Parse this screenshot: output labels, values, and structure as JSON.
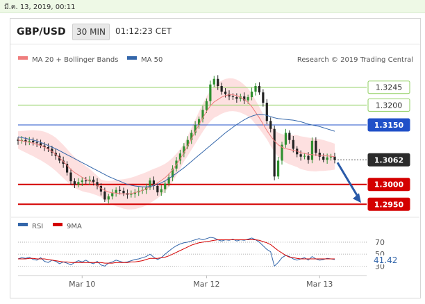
{
  "timestamp": "มี.ค. 13, 2019, 00:11",
  "header": {
    "pair": "GBP/USD",
    "timeframe": "30 MIN",
    "clock": "01:12:23 CET"
  },
  "legend": {
    "ma20_bb": "MA 20 + Bollinger Bands",
    "ma50": "MA 50",
    "credit": "Research © 2019 Trading Central"
  },
  "rsi_legend": {
    "rsi": "RSI",
    "ma9": "9MA"
  },
  "colors": {
    "bullish": "#2f8f2f",
    "bearish": "#222222",
    "ma20": "#ef7d7d",
    "bollinger_fill": "#fde0e0",
    "ma50": "#3366aa",
    "support": "#d40000",
    "pivot": "#2050c8",
    "resistance_line": "#8fcf5f",
    "arrow": "#2a5aa8"
  },
  "chart_data": [
    {
      "type": "candlestick",
      "x_ticks": [
        "Mar 10",
        "Mar 12",
        "Mar 13"
      ],
      "y_ticks": [
        "1.3245",
        "1.3200",
        "1.3150",
        "1.3062",
        "1.3000",
        "1.2950"
      ],
      "levels": [
        {
          "label": "1.3245",
          "value": 1.3245,
          "kind": "resistance"
        },
        {
          "label": "1.3200",
          "value": 1.32,
          "kind": "resistance"
        },
        {
          "label": "1.3150",
          "value": 1.315,
          "kind": "pivot"
        },
        {
          "label": "1.3062",
          "value": 1.3062,
          "kind": "last"
        },
        {
          "label": "1.3000",
          "value": 1.3,
          "kind": "support"
        },
        {
          "label": "1.2950",
          "value": 1.295,
          "kind": "support"
        }
      ],
      "ylim": [
        1.294,
        1.329
      ],
      "close": [
        1.311,
        1.3112,
        1.3108,
        1.311,
        1.3106,
        1.3104,
        1.3098,
        1.3094,
        1.309,
        1.308,
        1.3072,
        1.306,
        1.3052,
        1.303,
        1.3008,
        1.3,
        1.3006,
        1.301,
        1.3008,
        1.3012,
        1.3006,
        1.2996,
        1.2982,
        1.2962,
        1.297,
        1.2978,
        1.2986,
        1.2984,
        1.2978,
        1.2974,
        1.2976,
        1.298,
        1.2984,
        1.2986,
        1.2992,
        1.301,
        1.2996,
        1.298,
        1.2988,
        1.3002,
        1.3018,
        1.304,
        1.306,
        1.3078,
        1.3096,
        1.3112,
        1.313,
        1.315,
        1.3165,
        1.3188,
        1.321,
        1.3252,
        1.3266,
        1.3248,
        1.3234,
        1.3228,
        1.3222,
        1.322,
        1.3216,
        1.3222,
        1.3212,
        1.322,
        1.3234,
        1.3248,
        1.3232,
        1.3206,
        1.316,
        1.314,
        1.302,
        1.306,
        1.31,
        1.313,
        1.3112,
        1.309,
        1.3076,
        1.307,
        1.3072,
        1.3062,
        1.311,
        1.308,
        1.307,
        1.3062,
        1.3068,
        1.307,
        1.3062
      ],
      "ma20": [
        1.3112,
        1.311,
        1.3108,
        1.3106,
        1.3104,
        1.3101,
        1.3098,
        1.3094,
        1.3089,
        1.3083,
        1.3076,
        1.3067,
        1.3058,
        1.3048,
        1.3038,
        1.303,
        1.3024,
        1.3018,
        1.3013,
        1.3009,
        1.3003,
        1.2997,
        1.299,
        1.2985,
        1.2981,
        1.2979,
        1.2978,
        1.2977,
        1.2976,
        1.2976,
        1.2977,
        1.2979,
        1.2982,
        1.2985,
        1.2989,
        1.2994,
        1.2999,
        1.3004,
        1.301,
        1.3017,
        1.3026,
        1.3037,
        1.305,
        1.3064,
        1.308,
        1.3097,
        1.3115,
        1.3133,
        1.3151,
        1.3168,
        1.3184,
        1.3198,
        1.3208,
        1.3214,
        1.322,
        1.3224,
        1.3226,
        1.3226,
        1.3224,
        1.322,
        1.3214,
        1.3207,
        1.3196,
        1.3182,
        1.3168,
        1.3152,
        1.3136,
        1.3122,
        1.311,
        1.31,
        1.3094,
        1.309,
        1.3088,
        1.3086,
        1.3084,
        1.308,
        1.3078,
        1.3076,
        1.3075,
        1.3074,
        1.3074,
        1.3073,
        1.3072,
        1.3071,
        1.307
      ],
      "ma50": [
        1.312,
        1.3118,
        1.3116,
        1.3114,
        1.3112,
        1.3109,
        1.3106,
        1.3102,
        1.3098,
        1.3094,
        1.309,
        1.3085,
        1.308,
        1.3075,
        1.307,
        1.3065,
        1.306,
        1.3055,
        1.305,
        1.3045,
        1.304,
        1.3035,
        1.303,
        1.3025,
        1.302,
        1.3016,
        1.3012,
        1.3008,
        1.3004,
        1.3,
        1.2998,
        1.2996,
        1.2995,
        1.2994,
        1.2994,
        1.2995,
        1.2997,
        1.3,
        1.3004,
        1.3009,
        1.3015,
        1.3021,
        1.3028,
        1.3035,
        1.3042,
        1.305,
        1.3058,
        1.3066,
        1.3074,
        1.3082,
        1.309,
        1.3098,
        1.3106,
        1.3114,
        1.3122,
        1.313,
        1.3137,
        1.3144,
        1.3151,
        1.3157,
        1.3163,
        1.3168,
        1.3172,
        1.3175,
        1.3177,
        1.3176,
        1.3174,
        1.3171,
        1.3168,
        1.3166,
        1.3165,
        1.3164,
        1.3163,
        1.3162,
        1.316,
        1.3158,
        1.3155,
        1.3152,
        1.315,
        1.3148,
        1.3146,
        1.3143,
        1.314,
        1.3137,
        1.3134
      ]
    },
    {
      "type": "line",
      "title": "RSI",
      "y_ticks": [
        "70",
        "50",
        "30"
      ],
      "last_value_label": "41.42",
      "ylim": [
        20,
        85
      ],
      "rsi": [
        42,
        44,
        43,
        45,
        41,
        40,
        44,
        38,
        36,
        40,
        38,
        34,
        37,
        35,
        32,
        36,
        39,
        37,
        40,
        36,
        34,
        38,
        32,
        30,
        35,
        37,
        40,
        38,
        36,
        37,
        39,
        41,
        42,
        44,
        46,
        50,
        45,
        41,
        44,
        50,
        55,
        60,
        64,
        67,
        69,
        70,
        72,
        74,
        76,
        74,
        76,
        78,
        77,
        74,
        72,
        74,
        73,
        75,
        72,
        74,
        73,
        75,
        77,
        74,
        70,
        64,
        58,
        54,
        30,
        36,
        44,
        48,
        46,
        42,
        40,
        42,
        44,
        40,
        46,
        42,
        40,
        41,
        43,
        42,
        41
      ],
      "ma9": [
        42,
        42,
        42,
        43,
        43,
        42,
        42,
        42,
        41,
        40,
        39,
        38,
        37,
        37,
        36,
        36,
        36,
        36,
        36,
        36,
        36,
        36,
        36,
        35,
        35,
        35,
        36,
        36,
        36,
        36,
        37,
        37,
        38,
        39,
        41,
        43,
        43,
        43,
        44,
        45,
        47,
        50,
        53,
        56,
        59,
        62,
        65,
        67,
        69,
        70,
        71,
        72,
        73,
        74,
        74,
        74,
        74,
        74,
        74,
        74,
        74,
        74,
        74,
        74,
        73,
        71,
        69,
        66,
        61,
        56,
        52,
        48,
        45,
        44,
        43,
        42,
        42,
        42,
        42,
        42,
        42,
        42,
        42,
        42,
        42
      ]
    }
  ]
}
